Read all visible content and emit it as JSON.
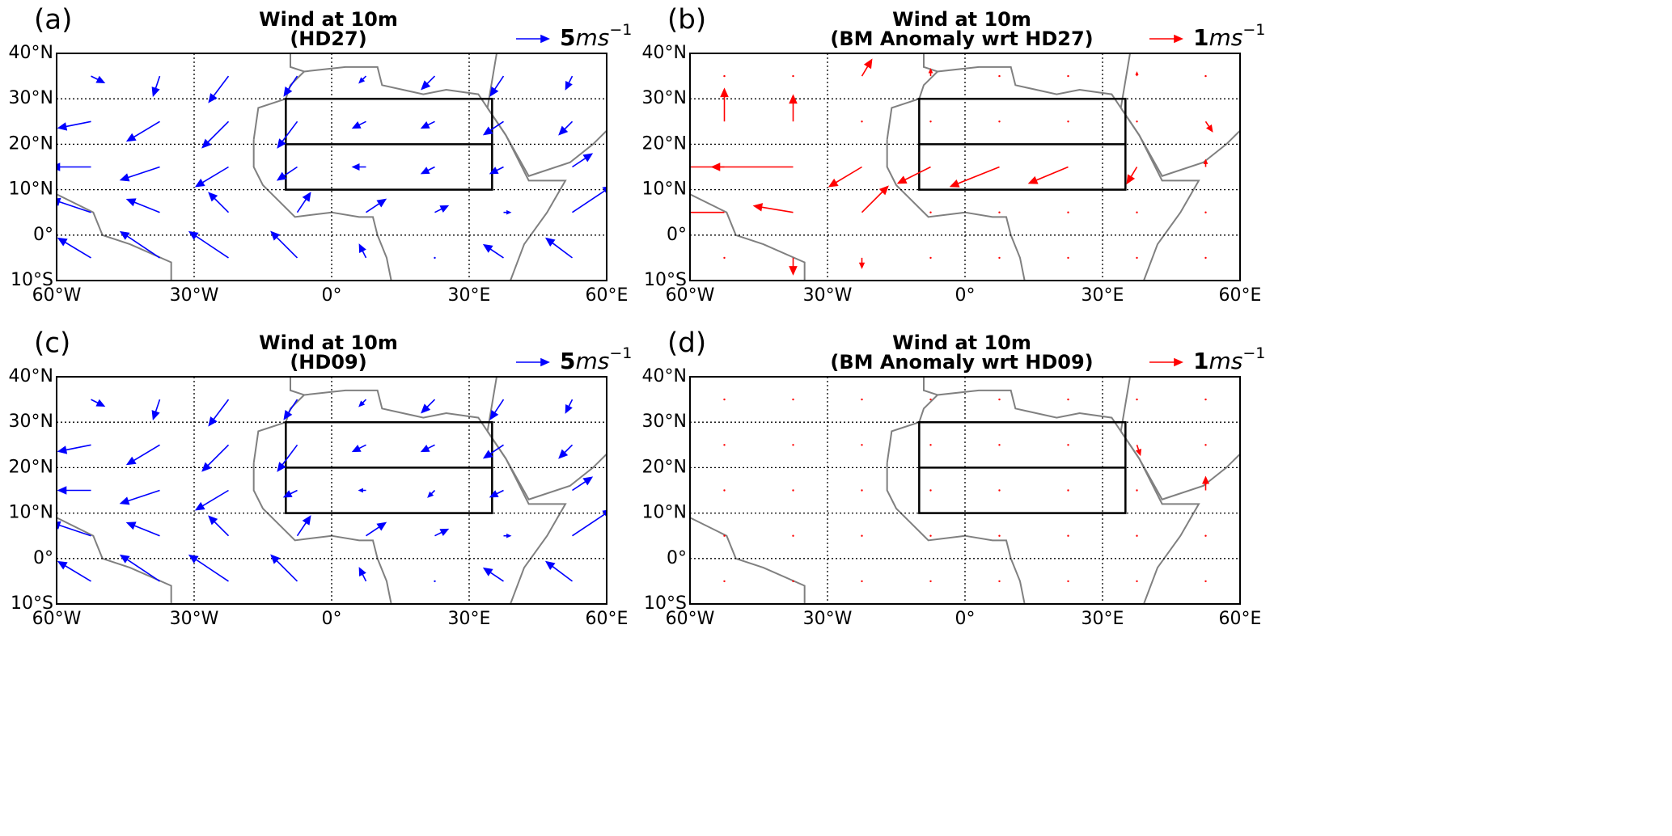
{
  "chart_data": [
    {
      "type": "quiver",
      "panel_label": "(a)",
      "title": [
        "Wind at 10m",
        "(HD27)"
      ],
      "color": "#0000ff",
      "key": {
        "value": 5,
        "unit": "ms",
        "exponent": "−1"
      },
      "xlim": [
        -60,
        60
      ],
      "ylim": [
        -10,
        40
      ],
      "xticks": [
        {
          "value": -60,
          "label": "60°W"
        },
        {
          "value": -30,
          "label": "30°W"
        },
        {
          "value": 0,
          "label": "0°"
        },
        {
          "value": 30,
          "label": "30°E"
        },
        {
          "value": 60,
          "label": "60°E"
        }
      ],
      "yticks": [
        {
          "value": -10,
          "label": "10°S"
        },
        {
          "value": 0,
          "label": "0°"
        },
        {
          "value": 10,
          "label": "10°N"
        },
        {
          "value": 20,
          "label": "20°N"
        },
        {
          "value": 30,
          "label": "30°N"
        },
        {
          "value": 40,
          "label": "40°N"
        }
      ],
      "grid": true,
      "box": {
        "lon": [
          -10,
          35
        ],
        "lat": [
          10,
          20,
          30
        ]
      },
      "lons": [
        -52.5,
        -37.5,
        -22.5,
        -7.5,
        7.5,
        22.5,
        37.5,
        52.5
      ],
      "lats": [
        35,
        25,
        15,
        5,
        -5
      ],
      "u": [
        [
          2,
          -1,
          -3,
          -2,
          -1,
          -2,
          -2,
          -1
        ],
        [
          -5,
          -5,
          -4,
          -3,
          -2,
          -2,
          -3,
          -2
        ],
        [
          -6,
          -6,
          -5,
          -3,
          -2,
          -2,
          -2,
          3
        ],
        [
          -6,
          -5,
          -3,
          2,
          3,
          2,
          1,
          6
        ],
        [
          -5,
          -6,
          -6,
          -4,
          -1,
          0,
          -3,
          -4
        ]
      ],
      "v": [
        [
          -1,
          -3,
          -4,
          -3,
          -1,
          -2,
          -3,
          -2
        ],
        [
          -1,
          -3,
          -4,
          -4,
          -1,
          -1,
          -2,
          -2
        ],
        [
          0,
          -2,
          -3,
          -2,
          0,
          -1,
          -1,
          2
        ],
        [
          2,
          2,
          3,
          3,
          2,
          1,
          0,
          4
        ],
        [
          3,
          4,
          4,
          4,
          2,
          0,
          2,
          3
        ]
      ]
    },
    {
      "type": "quiver",
      "panel_label": "(b)",
      "title": [
        "Wind at 10m",
        "(BM Anomaly wrt HD27)"
      ],
      "color": "#ff0000",
      "key": {
        "value": 1,
        "unit": "ms",
        "exponent": "−1"
      },
      "xlim": [
        -60,
        60
      ],
      "ylim": [
        -10,
        40
      ],
      "xticks": [
        {
          "value": -60,
          "label": "60°W"
        },
        {
          "value": -30,
          "label": "30°W"
        },
        {
          "value": 0,
          "label": "0°"
        },
        {
          "value": 30,
          "label": "30°E"
        },
        {
          "value": 60,
          "label": "60°E"
        }
      ],
      "yticks": [
        {
          "value": -10,
          "label": "10°S"
        },
        {
          "value": 0,
          "label": "0°"
        },
        {
          "value": 10,
          "label": "10°N"
        },
        {
          "value": 20,
          "label": "20°N"
        },
        {
          "value": 30,
          "label": "30°N"
        },
        {
          "value": 40,
          "label": "40°N"
        }
      ],
      "grid": true,
      "box": {
        "lon": [
          -10,
          35
        ],
        "lat": [
          10,
          20,
          30
        ]
      },
      "lons": [
        -52.5,
        -37.5,
        -22.5,
        -7.5,
        7.5,
        22.5,
        37.5,
        52.5
      ],
      "lats": [
        35,
        25,
        15,
        5,
        -5
      ],
      "u": [
        [
          0,
          0,
          0.3,
          0,
          0,
          0,
          0,
          0
        ],
        [
          0,
          0,
          0,
          0,
          0,
          0,
          0,
          0.2
        ],
        [
          -3,
          -2.5,
          -1,
          -1,
          -1.5,
          -1.2,
          -0.3,
          0
        ],
        [
          -2.5,
          -1.2,
          0.8,
          0,
          0,
          0,
          0,
          0
        ],
        [
          0,
          0,
          0,
          0,
          0,
          0,
          0,
          0
        ]
      ],
      "v": [
        [
          0,
          0,
          0.5,
          0.2,
          0,
          0,
          0.1,
          0
        ],
        [
          1,
          0.8,
          0,
          0,
          0,
          0,
          0,
          -0.3
        ],
        [
          0,
          0,
          -0.6,
          -0.5,
          -0.6,
          -0.5,
          -0.5,
          0.2
        ],
        [
          0,
          0.2,
          0.8,
          0,
          0,
          0,
          0,
          0
        ],
        [
          0,
          -0.5,
          -0.3,
          0,
          0,
          0,
          0,
          0
        ]
      ]
    },
    {
      "type": "quiver",
      "panel_label": "(c)",
      "title": [
        "Wind at 10m",
        "(HD09)"
      ],
      "color": "#0000ff",
      "key": {
        "value": 5,
        "unit": "ms",
        "exponent": "−1"
      },
      "xlim": [
        -60,
        60
      ],
      "ylim": [
        -10,
        40
      ],
      "xticks": [
        {
          "value": -60,
          "label": "60°W"
        },
        {
          "value": -30,
          "label": "30°W"
        },
        {
          "value": 0,
          "label": "0°"
        },
        {
          "value": 30,
          "label": "30°E"
        },
        {
          "value": 60,
          "label": "60°E"
        }
      ],
      "yticks": [
        {
          "value": -10,
          "label": "10°S"
        },
        {
          "value": 0,
          "label": "0°"
        },
        {
          "value": 10,
          "label": "10°N"
        },
        {
          "value": 20,
          "label": "20°N"
        },
        {
          "value": 30,
          "label": "30°N"
        },
        {
          "value": 40,
          "label": "40°N"
        }
      ],
      "grid": true,
      "box": {
        "lon": [
          -10,
          35
        ],
        "lat": [
          10,
          20,
          30
        ]
      },
      "lons": [
        -52.5,
        -37.5,
        -22.5,
        -7.5,
        7.5,
        22.5,
        37.5,
        52.5
      ],
      "lats": [
        35,
        25,
        15,
        5,
        -5
      ],
      "u": [
        [
          2,
          -1,
          -3,
          -2,
          -1,
          -2,
          -2,
          -1
        ],
        [
          -5,
          -5,
          -4,
          -3,
          -2,
          -2,
          -3,
          -2
        ],
        [
          -5,
          -6,
          -5,
          -2,
          -1,
          -1,
          -2,
          3
        ],
        [
          -6,
          -5,
          -3,
          2,
          3,
          2,
          1,
          6
        ],
        [
          -5,
          -6,
          -6,
          -4,
          -1,
          0,
          -3,
          -4
        ]
      ],
      "v": [
        [
          -1,
          -3,
          -4,
          -3,
          -1,
          -2,
          -3,
          -2
        ],
        [
          -1,
          -3,
          -4,
          -4,
          -1,
          -1,
          -2,
          -2
        ],
        [
          0,
          -2,
          -3,
          -1,
          0,
          -1,
          -1,
          2
        ],
        [
          2,
          2,
          3,
          3,
          2,
          1,
          0,
          4
        ],
        [
          3,
          4,
          4,
          4,
          2,
          0,
          2,
          3
        ]
      ]
    },
    {
      "type": "quiver",
      "panel_label": "(d)",
      "title": [
        "Wind at 10m",
        "(BM Anomaly wrt HD09)"
      ],
      "color": "#ff0000",
      "key": {
        "value": 1,
        "unit": "ms",
        "exponent": "−1"
      },
      "xlim": [
        -60,
        60
      ],
      "ylim": [
        -10,
        40
      ],
      "xticks": [
        {
          "value": -60,
          "label": "60°W"
        },
        {
          "value": -30,
          "label": "30°W"
        },
        {
          "value": 0,
          "label": "0°"
        },
        {
          "value": 30,
          "label": "30°E"
        },
        {
          "value": 60,
          "label": "60°E"
        }
      ],
      "yticks": [
        {
          "value": -10,
          "label": "10°S"
        },
        {
          "value": 0,
          "label": "0°"
        },
        {
          "value": 10,
          "label": "10°N"
        },
        {
          "value": 20,
          "label": "20°N"
        },
        {
          "value": 30,
          "label": "30°N"
        },
        {
          "value": 40,
          "label": "40°N"
        }
      ],
      "grid": true,
      "box": {
        "lon": [
          -10,
          35
        ],
        "lat": [
          10,
          20,
          30
        ]
      },
      "lons": [
        -52.5,
        -37.5,
        -22.5,
        -7.5,
        7.5,
        22.5,
        37.5,
        52.5
      ],
      "lats": [
        35,
        25,
        15,
        5,
        -5
      ],
      "u": [
        [
          0,
          0,
          0,
          0,
          0,
          0,
          0,
          0
        ],
        [
          0,
          0,
          0,
          0,
          0,
          0,
          0.1,
          0
        ],
        [
          0,
          0,
          0,
          0,
          0,
          0,
          0,
          0
        ],
        [
          0,
          0,
          0,
          0,
          0,
          0,
          0,
          0
        ],
        [
          0,
          0,
          0,
          0,
          0,
          0,
          0,
          0
        ]
      ],
      "v": [
        [
          0,
          0,
          0,
          0,
          0,
          0,
          0,
          0
        ],
        [
          0,
          0,
          0,
          0,
          0,
          0,
          -0.3,
          0
        ],
        [
          0,
          0,
          0,
          0,
          0,
          0,
          0,
          0.4
        ],
        [
          0,
          0,
          0,
          0,
          0,
          0,
          0,
          0
        ],
        [
          0,
          0,
          0,
          0,
          0,
          0,
          0,
          0
        ]
      ]
    }
  ]
}
